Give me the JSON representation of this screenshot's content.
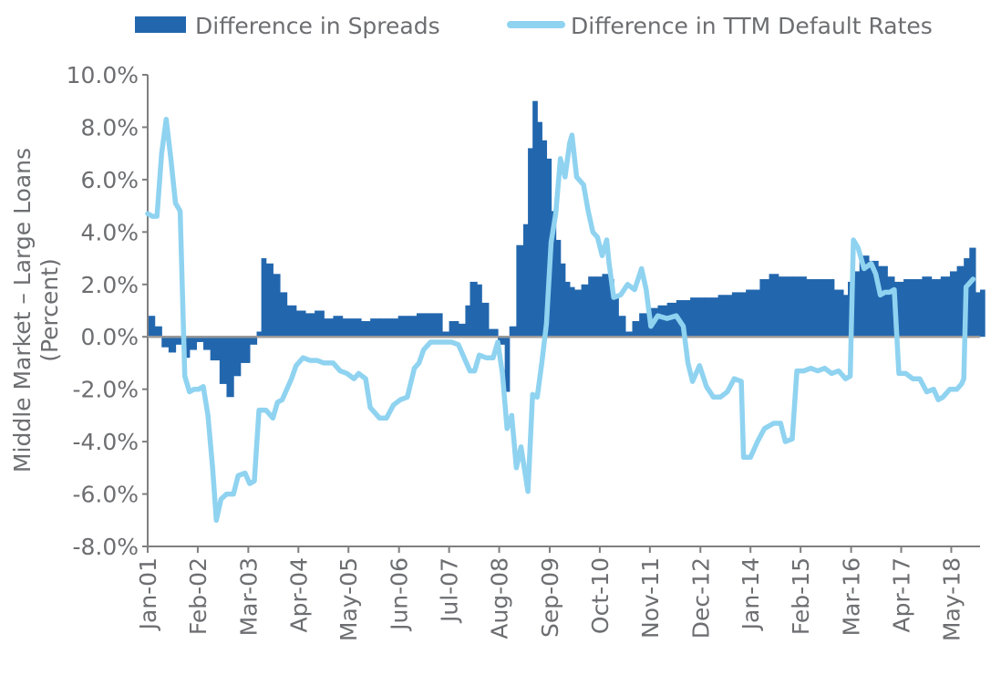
{
  "chart_data": {
    "type": "bar",
    "legend": {
      "placement": "top",
      "entries": [
        "Difference in Spreads",
        "Difference in TTM Default Rates"
      ]
    },
    "ylabel_line1": "Middle Market – Large Loans",
    "ylabel_line2": "(Percent)",
    "ylim": [
      -8,
      10
    ],
    "ytick_values": [
      -8,
      -6,
      -4,
      -2,
      0,
      2,
      4,
      6,
      8,
      10
    ],
    "ytick_labels": [
      "-8.0%",
      "-6.0%",
      "-4.0%",
      "-2.0%",
      "0.0%",
      "2.0%",
      "4.0%",
      "6.0%",
      "8.0%",
      "10.0%"
    ],
    "xlim": [
      2001.0,
      2018.95
    ],
    "xtick_labels": [
      "Jan-01",
      "Feb-02",
      "Mar-03",
      "Apr-04",
      "May-05",
      "Jun-06",
      "Jul-07",
      "Aug-08",
      "Sep-09",
      "Oct-10",
      "Nov-11",
      "Dec-12",
      "Jan-14",
      "Feb-15",
      "Mar-16",
      "Apr-17",
      "May-18"
    ],
    "xtick_positions": [
      2001.0,
      2002.08,
      2003.17,
      2004.25,
      2005.33,
      2006.42,
      2007.5,
      2008.58,
      2009.67,
      2010.75,
      2011.83,
      2012.92,
      2014.0,
      2015.08,
      2016.17,
      2017.25,
      2018.33
    ],
    "colors": {
      "spreads": "#2267ae",
      "defaults": "#8fd3f0",
      "axis": "#7f7f7f",
      "text": "#6d6e71"
    },
    "series": [
      {
        "name": "Difference in Spreads",
        "type": "bar",
        "points": [
          [
            2001.0,
            0.8
          ],
          [
            2001.15,
            0.4
          ],
          [
            2001.3,
            -0.4
          ],
          [
            2001.45,
            -0.6
          ],
          [
            2001.6,
            -0.3
          ],
          [
            2001.75,
            -0.8
          ],
          [
            2001.9,
            -0.5
          ],
          [
            2002.05,
            -0.2
          ],
          [
            2002.2,
            -0.5
          ],
          [
            2002.35,
            -0.9
          ],
          [
            2002.55,
            -1.8
          ],
          [
            2002.7,
            -2.3
          ],
          [
            2002.85,
            -1.5
          ],
          [
            2003.0,
            -1.0
          ],
          [
            2003.2,
            -0.3
          ],
          [
            2003.35,
            0.2
          ],
          [
            2003.45,
            3.0
          ],
          [
            2003.55,
            2.8
          ],
          [
            2003.7,
            2.4
          ],
          [
            2003.85,
            1.7
          ],
          [
            2004.0,
            1.2
          ],
          [
            2004.2,
            1.0
          ],
          [
            2004.4,
            0.9
          ],
          [
            2004.6,
            1.0
          ],
          [
            2004.8,
            0.7
          ],
          [
            2005.0,
            0.8
          ],
          [
            2005.2,
            0.7
          ],
          [
            2005.4,
            0.7
          ],
          [
            2005.6,
            0.6
          ],
          [
            2005.8,
            0.7
          ],
          [
            2006.0,
            0.7
          ],
          [
            2006.2,
            0.7
          ],
          [
            2006.4,
            0.8
          ],
          [
            2006.6,
            0.8
          ],
          [
            2006.8,
            0.9
          ],
          [
            2007.0,
            0.9
          ],
          [
            2007.2,
            0.9
          ],
          [
            2007.35,
            0.2
          ],
          [
            2007.5,
            0.6
          ],
          [
            2007.7,
            0.5
          ],
          [
            2007.85,
            1.2
          ],
          [
            2007.95,
            2.1
          ],
          [
            2008.1,
            2.0
          ],
          [
            2008.2,
            1.3
          ],
          [
            2008.35,
            0.3
          ],
          [
            2008.55,
            -0.3
          ],
          [
            2008.7,
            -2.1
          ],
          [
            2008.8,
            0.4
          ],
          [
            2008.95,
            3.5
          ],
          [
            2009.1,
            4.3
          ],
          [
            2009.2,
            7.2
          ],
          [
            2009.3,
            9.0
          ],
          [
            2009.4,
            8.2
          ],
          [
            2009.5,
            7.5
          ],
          [
            2009.6,
            6.8
          ],
          [
            2009.7,
            4.8
          ],
          [
            2009.8,
            3.7
          ],
          [
            2009.9,
            2.8
          ],
          [
            2010.0,
            2.1
          ],
          [
            2010.1,
            1.9
          ],
          [
            2010.2,
            1.8
          ],
          [
            2010.35,
            2.0
          ],
          [
            2010.5,
            2.3
          ],
          [
            2010.65,
            2.3
          ],
          [
            2010.8,
            2.4
          ],
          [
            2010.95,
            2.2
          ],
          [
            2011.05,
            1.5
          ],
          [
            2011.15,
            0.8
          ],
          [
            2011.3,
            0.2
          ],
          [
            2011.45,
            0.6
          ],
          [
            2011.6,
            0.9
          ],
          [
            2011.8,
            1.1
          ],
          [
            2012.0,
            1.2
          ],
          [
            2012.2,
            1.3
          ],
          [
            2012.4,
            1.4
          ],
          [
            2012.7,
            1.5
          ],
          [
            2013.0,
            1.5
          ],
          [
            2013.3,
            1.6
          ],
          [
            2013.6,
            1.7
          ],
          [
            2013.9,
            1.8
          ],
          [
            2014.2,
            2.2
          ],
          [
            2014.4,
            2.4
          ],
          [
            2014.6,
            2.3
          ],
          [
            2014.9,
            2.3
          ],
          [
            2015.2,
            2.2
          ],
          [
            2015.5,
            2.2
          ],
          [
            2015.8,
            1.8
          ],
          [
            2016.0,
            1.6
          ],
          [
            2016.1,
            2.1
          ],
          [
            2016.2,
            2.5
          ],
          [
            2016.35,
            3.1
          ],
          [
            2016.55,
            2.9
          ],
          [
            2016.75,
            2.7
          ],
          [
            2016.95,
            2.3
          ],
          [
            2017.1,
            2.1
          ],
          [
            2017.3,
            2.2
          ],
          [
            2017.5,
            2.2
          ],
          [
            2017.7,
            2.3
          ],
          [
            2017.9,
            2.2
          ],
          [
            2018.1,
            2.3
          ],
          [
            2018.3,
            2.5
          ],
          [
            2018.45,
            2.7
          ],
          [
            2018.6,
            3.0
          ],
          [
            2018.72,
            3.4
          ],
          [
            2018.85,
            1.7
          ],
          [
            2018.95,
            1.8
          ]
        ]
      },
      {
        "name": "Difference in TTM Default Rates",
        "type": "line",
        "points": [
          [
            2001.0,
            4.7
          ],
          [
            2001.1,
            4.6
          ],
          [
            2001.2,
            4.6
          ],
          [
            2001.3,
            7.0
          ],
          [
            2001.4,
            8.3
          ],
          [
            2001.5,
            6.8
          ],
          [
            2001.6,
            5.1
          ],
          [
            2001.7,
            4.8
          ],
          [
            2001.8,
            -1.5
          ],
          [
            2001.9,
            -2.1
          ],
          [
            2002.0,
            -2.0
          ],
          [
            2002.1,
            -2.0
          ],
          [
            2002.2,
            -1.9
          ],
          [
            2002.3,
            -3.0
          ],
          [
            2002.4,
            -5.0
          ],
          [
            2002.48,
            -7.0
          ],
          [
            2002.58,
            -6.2
          ],
          [
            2002.7,
            -6.0
          ],
          [
            2002.85,
            -6.0
          ],
          [
            2002.95,
            -5.3
          ],
          [
            2003.1,
            -5.2
          ],
          [
            2003.2,
            -5.6
          ],
          [
            2003.3,
            -5.5
          ],
          [
            2003.4,
            -2.8
          ],
          [
            2003.55,
            -2.8
          ],
          [
            2003.7,
            -3.1
          ],
          [
            2003.8,
            -2.5
          ],
          [
            2003.9,
            -2.4
          ],
          [
            2004.0,
            -2.0
          ],
          [
            2004.1,
            -1.6
          ],
          [
            2004.2,
            -1.1
          ],
          [
            2004.35,
            -0.8
          ],
          [
            2004.5,
            -0.9
          ],
          [
            2004.65,
            -0.9
          ],
          [
            2004.8,
            -1.0
          ],
          [
            2005.0,
            -1.0
          ],
          [
            2005.15,
            -1.3
          ],
          [
            2005.3,
            -1.4
          ],
          [
            2005.45,
            -1.6
          ],
          [
            2005.55,
            -1.4
          ],
          [
            2005.7,
            -1.6
          ],
          [
            2005.8,
            -2.7
          ],
          [
            2005.9,
            -2.9
          ],
          [
            2006.0,
            -3.1
          ],
          [
            2006.15,
            -3.1
          ],
          [
            2006.3,
            -2.6
          ],
          [
            2006.45,
            -2.4
          ],
          [
            2006.6,
            -2.3
          ],
          [
            2006.75,
            -1.2
          ],
          [
            2006.85,
            -1.0
          ],
          [
            2006.95,
            -0.5
          ],
          [
            2007.1,
            -0.2
          ],
          [
            2007.25,
            -0.2
          ],
          [
            2007.4,
            -0.2
          ],
          [
            2007.55,
            -0.2
          ],
          [
            2007.7,
            -0.3
          ],
          [
            2007.85,
            -0.9
          ],
          [
            2007.95,
            -1.3
          ],
          [
            2008.05,
            -1.3
          ],
          [
            2008.15,
            -0.7
          ],
          [
            2008.3,
            -0.8
          ],
          [
            2008.45,
            -0.8
          ],
          [
            2008.55,
            -0.2
          ],
          [
            2008.65,
            -1.4
          ],
          [
            2008.75,
            -3.5
          ],
          [
            2008.85,
            -3.0
          ],
          [
            2008.95,
            -5.0
          ],
          [
            2009.05,
            -4.2
          ],
          [
            2009.2,
            -5.9
          ],
          [
            2009.3,
            -2.2
          ],
          [
            2009.4,
            -2.3
          ],
          [
            2009.5,
            -1.0
          ],
          [
            2009.6,
            0.5
          ],
          [
            2009.7,
            3.6
          ],
          [
            2009.8,
            4.7
          ],
          [
            2009.9,
            6.8
          ],
          [
            2010.0,
            6.1
          ],
          [
            2010.1,
            7.4
          ],
          [
            2010.15,
            7.7
          ],
          [
            2010.25,
            6.1
          ],
          [
            2010.4,
            5.8
          ],
          [
            2010.5,
            4.8
          ],
          [
            2010.6,
            4.0
          ],
          [
            2010.7,
            3.8
          ],
          [
            2010.8,
            3.1
          ],
          [
            2010.9,
            3.7
          ],
          [
            2010.95,
            2.8
          ],
          [
            2011.05,
            1.5
          ],
          [
            2011.2,
            1.6
          ],
          [
            2011.35,
            2.0
          ],
          [
            2011.5,
            1.8
          ],
          [
            2011.65,
            2.6
          ],
          [
            2011.75,
            1.8
          ],
          [
            2011.85,
            0.4
          ],
          [
            2012.0,
            0.8
          ],
          [
            2012.2,
            0.7
          ],
          [
            2012.4,
            0.8
          ],
          [
            2012.55,
            0.4
          ],
          [
            2012.65,
            -1.0
          ],
          [
            2012.75,
            -1.7
          ],
          [
            2012.9,
            -1.1
          ],
          [
            2013.05,
            -1.9
          ],
          [
            2013.2,
            -2.3
          ],
          [
            2013.35,
            -2.3
          ],
          [
            2013.5,
            -2.1
          ],
          [
            2013.65,
            -1.6
          ],
          [
            2013.8,
            -1.7
          ],
          [
            2013.85,
            -4.6
          ],
          [
            2014.0,
            -4.6
          ],
          [
            2014.15,
            -4.0
          ],
          [
            2014.3,
            -3.5
          ],
          [
            2014.5,
            -3.3
          ],
          [
            2014.65,
            -3.3
          ],
          [
            2014.75,
            -4.0
          ],
          [
            2014.9,
            -3.9
          ],
          [
            2015.0,
            -1.3
          ],
          [
            2015.15,
            -1.3
          ],
          [
            2015.3,
            -1.2
          ],
          [
            2015.45,
            -1.3
          ],
          [
            2015.6,
            -1.2
          ],
          [
            2015.75,
            -1.4
          ],
          [
            2015.9,
            -1.3
          ],
          [
            2016.05,
            -1.6
          ],
          [
            2016.15,
            -1.5
          ],
          [
            2016.22,
            3.7
          ],
          [
            2016.32,
            3.4
          ],
          [
            2016.45,
            2.6
          ],
          [
            2016.6,
            2.8
          ],
          [
            2016.7,
            2.4
          ],
          [
            2016.8,
            1.6
          ],
          [
            2016.9,
            1.7
          ],
          [
            2017.0,
            1.7
          ],
          [
            2017.1,
            1.8
          ],
          [
            2017.2,
            -1.4
          ],
          [
            2017.35,
            -1.4
          ],
          [
            2017.5,
            -1.6
          ],
          [
            2017.65,
            -1.6
          ],
          [
            2017.8,
            -2.1
          ],
          [
            2017.95,
            -2.0
          ],
          [
            2018.05,
            -2.4
          ],
          [
            2018.15,
            -2.3
          ],
          [
            2018.3,
            -2.0
          ],
          [
            2018.45,
            -2.0
          ],
          [
            2018.55,
            -1.8
          ],
          [
            2018.6,
            -1.6
          ],
          [
            2018.65,
            1.9
          ],
          [
            2018.8,
            2.2
          ]
        ]
      }
    ]
  }
}
